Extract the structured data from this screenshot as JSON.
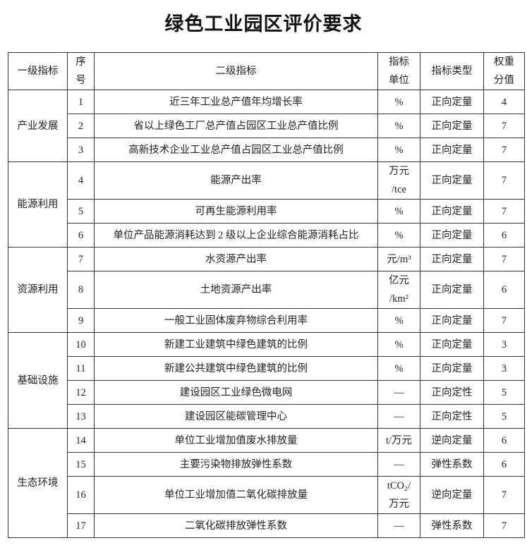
{
  "title": "绿色工业园区评价要求",
  "headers": {
    "level1": "一级指标",
    "seq": [
      "序",
      "号"
    ],
    "level2": "二级指标",
    "unit": [
      "指标",
      "单位"
    ],
    "type": "指标类型",
    "weight": [
      "权重",
      "分值"
    ]
  },
  "groups": [
    {
      "name": "产业发展",
      "rows": [
        {
          "seq": "1",
          "indicator": "近三年工业总产值年均增长率",
          "unit": [
            "%"
          ],
          "type": "正向定量",
          "weight": "4"
        },
        {
          "seq": "2",
          "indicator": "省以上绿色工厂总产值占园区工业总产值比例",
          "unit": [
            "%"
          ],
          "type": "正向定量",
          "weight": "7"
        },
        {
          "seq": "3",
          "indicator": "高新技术企业工业总产值占园区工业总产值比例",
          "unit": [
            "%"
          ],
          "type": "正向定量",
          "weight": "7"
        }
      ]
    },
    {
      "name": "能源利用",
      "rows": [
        {
          "seq": "4",
          "indicator": "能源产出率",
          "unit": [
            "万元",
            "/tce"
          ],
          "type": "正向定量",
          "weight": "7"
        },
        {
          "seq": "5",
          "indicator": "可再生能源利用率",
          "unit": [
            "%"
          ],
          "type": "正向定量",
          "weight": "7"
        },
        {
          "seq": "6",
          "indicator": "单位产品能源消耗达到 2 级以上企业综合能源消耗占比",
          "unit": [
            "%"
          ],
          "type": "正向定量",
          "weight": "6"
        }
      ]
    },
    {
      "name": "资源利用",
      "rows": [
        {
          "seq": "7",
          "indicator": "水资源产出率",
          "unit": [
            "元/m³"
          ],
          "type": "正向定量",
          "weight": "7"
        },
        {
          "seq": "8",
          "indicator": "土地资源产出率",
          "unit": [
            "亿元",
            "/km²"
          ],
          "type": "正向定量",
          "weight": "6"
        },
        {
          "seq": "9",
          "indicator": "一般工业固体废弃物综合利用率",
          "unit": [
            "%"
          ],
          "type": "正向定量",
          "weight": "7"
        }
      ]
    },
    {
      "name": "基础设施",
      "rows": [
        {
          "seq": "10",
          "indicator": "新建工业建筑中绿色建筑的比例",
          "unit": [
            "%"
          ],
          "type": "正向定量",
          "weight": "3"
        },
        {
          "seq": "11",
          "indicator": "新建公共建筑中绿色建筑的比例",
          "unit": [
            "%"
          ],
          "type": "正向定量",
          "weight": "3"
        },
        {
          "seq": "12",
          "indicator": "建设园区工业绿色微电网",
          "unit": [
            "—"
          ],
          "type": "正向定性",
          "weight": "5"
        },
        {
          "seq": "13",
          "indicator": "建设园区能碳管理中心",
          "unit": [
            "—"
          ],
          "type": "正向定性",
          "weight": "5"
        }
      ]
    },
    {
      "name": "生态环境",
      "rows": [
        {
          "seq": "14",
          "indicator": "单位工业增加值废水排放量",
          "unit": [
            "t/万元"
          ],
          "type": "逆向定量",
          "weight": "6"
        },
        {
          "seq": "15",
          "indicator": "主要污染物排放弹性系数",
          "unit": [
            "—"
          ],
          "type": "弹性系数",
          "weight": "6"
        },
        {
          "seq": "16",
          "indicator": "单位工业增加值二氧化碳排放量",
          "unit": [
            "tCO₂/",
            "万元"
          ],
          "type": "逆向定量",
          "weight": "7"
        },
        {
          "seq": "17",
          "indicator": "二氧化碳排放弹性系数",
          "unit": [
            "—"
          ],
          "type": "弹性系数",
          "weight": "7"
        }
      ]
    }
  ]
}
